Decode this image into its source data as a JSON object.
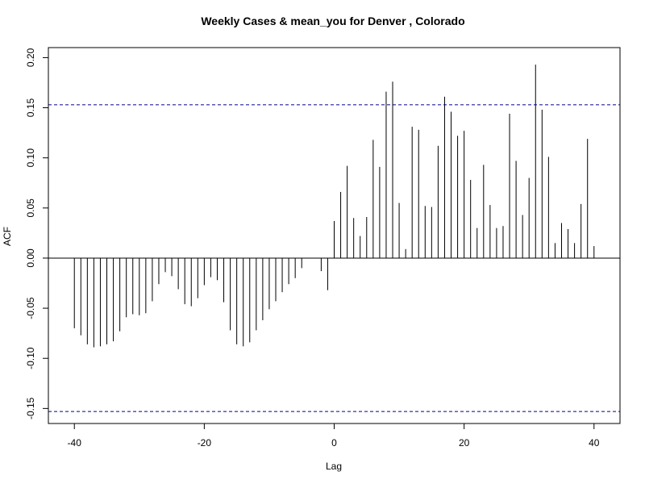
{
  "chart_data": {
    "type": "bar",
    "title": "Weekly Cases & mean_you for Denver , Colorado",
    "xlabel": "Lag",
    "ylabel": "ACF",
    "xlim": [
      -44,
      44
    ],
    "ylim": [
      -0.165,
      0.21
    ],
    "x_ticks": [
      -40,
      -20,
      0,
      20,
      40
    ],
    "x_tick_labels": [
      "-40",
      "-20",
      "0",
      "20",
      "40"
    ],
    "y_ticks": [
      -0.15,
      -0.1,
      -0.05,
      0.0,
      0.05,
      0.1,
      0.15,
      0.2
    ],
    "y_tick_labels": [
      "-0.15",
      "-0.10",
      "-0.05",
      "0.00",
      "0.05",
      "0.10",
      "0.15",
      "0.20"
    ],
    "confidence_band": 0.153,
    "x": [
      -40,
      -39,
      -38,
      -37,
      -36,
      -35,
      -34,
      -33,
      -32,
      -31,
      -30,
      -29,
      -28,
      -27,
      -26,
      -25,
      -24,
      -23,
      -22,
      -21,
      -20,
      -19,
      -18,
      -17,
      -16,
      -15,
      -14,
      -13,
      -12,
      -11,
      -10,
      -9,
      -8,
      -7,
      -6,
      -5,
      -4,
      -3,
      -2,
      -1,
      0,
      1,
      2,
      3,
      4,
      5,
      6,
      7,
      8,
      9,
      10,
      11,
      12,
      13,
      14,
      15,
      16,
      17,
      18,
      19,
      20,
      21,
      22,
      23,
      24,
      25,
      26,
      27,
      28,
      29,
      30,
      31,
      32,
      33,
      34,
      35,
      36,
      37,
      38,
      39,
      40
    ],
    "values": [
      -0.07,
      -0.077,
      -0.086,
      -0.089,
      -0.088,
      -0.086,
      -0.083,
      -0.073,
      -0.059,
      -0.056,
      -0.057,
      -0.055,
      -0.043,
      -0.026,
      -0.014,
      -0.018,
      -0.031,
      -0.046,
      -0.048,
      -0.04,
      -0.027,
      -0.019,
      -0.022,
      -0.044,
      -0.072,
      -0.086,
      -0.088,
      -0.084,
      -0.072,
      -0.062,
      -0.051,
      -0.043,
      -0.034,
      -0.026,
      -0.02,
      -0.01,
      0.0,
      0.0,
      -0.013,
      -0.032,
      0.037,
      0.066,
      0.092,
      0.04,
      0.022,
      0.041,
      0.118,
      0.091,
      0.166,
      0.176,
      0.055,
      0.009,
      0.131,
      0.128,
      0.052,
      0.051,
      0.112,
      0.161,
      0.146,
      0.122,
      0.127,
      0.078,
      0.03,
      0.093,
      0.053,
      0.03,
      0.032,
      0.144,
      0.097,
      0.043,
      0.08,
      0.193,
      0.148,
      0.101,
      0.015,
      0.035,
      0.029,
      0.015,
      0.054,
      0.119,
      0.012
    ],
    "colors": {
      "bars": "#000000",
      "band": "#00008B",
      "axis": "#000000"
    },
    "grid": false,
    "legend": "none"
  }
}
